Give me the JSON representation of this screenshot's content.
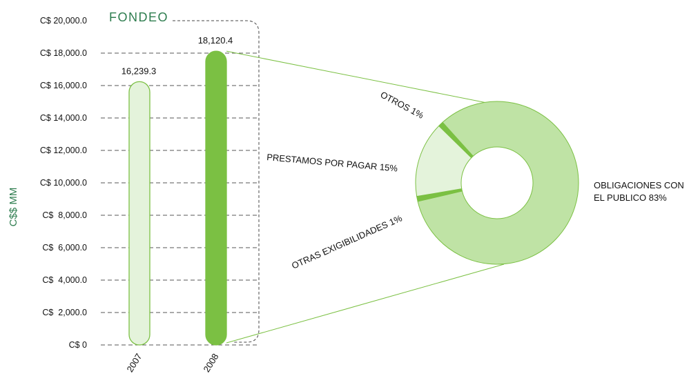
{
  "chart_data": [
    {
      "type": "bar",
      "title": "FONDEO",
      "ylabel": "C$$ MM",
      "categories": [
        "2007",
        "2008"
      ],
      "values": [
        16239.3,
        18120.4
      ],
      "value_labels": [
        "16,239.3",
        "18,120.4"
      ],
      "ylim": [
        0,
        20000
      ],
      "yticks": [
        0,
        2000,
        4000,
        6000,
        8000,
        10000,
        12000,
        14000,
        16000,
        18000,
        20000
      ],
      "ytick_labels": [
        "C$ 0",
        "C$  2,000.0",
        "C$  4,000.0",
        "C$  6,000.0",
        "C$  8,000.0",
        "C$ 10,000.0",
        "C$ 12,000.0",
        "C$ 14,000.0",
        "C$ 16,000.0",
        "C$ 18,000.0",
        "C$ 20,000.0"
      ],
      "grid": true,
      "colors": [
        "#e4f3db",
        "#7bc043"
      ]
    },
    {
      "type": "pie",
      "variant": "donut",
      "slices": [
        {
          "label": "OBLIGACIONES CON EL PUBLICO",
          "value": 83,
          "display": "83%",
          "color": "#bfe3a5"
        },
        {
          "label": "OTRAS EXIGIBILIDADES",
          "value": 1,
          "display": "1%",
          "color": "#7bc043"
        },
        {
          "label": "PRESTAMOS POR PAGAR",
          "value": 15,
          "display": "15%",
          "color": "#e4f3db"
        },
        {
          "label": "OTROS",
          "value": 1,
          "display": "1%",
          "color": "#7bc043"
        }
      ],
      "labels": {
        "otros": "OTROS  1%",
        "prestamos": "PRESTAMOS POR PAGAR  15%",
        "otras": "OTRAS EXIGIBILIDADES  1%",
        "obligaciones_line1": "OBLIGACIONES CON",
        "obligaciones_line2": "EL PUBLICO  83%"
      }
    }
  ],
  "colors": {
    "accent": "#7bc043",
    "light": "#e4f3db",
    "mid": "#bfe3a5",
    "title": "#2e7d4f",
    "grid": "#555555"
  }
}
